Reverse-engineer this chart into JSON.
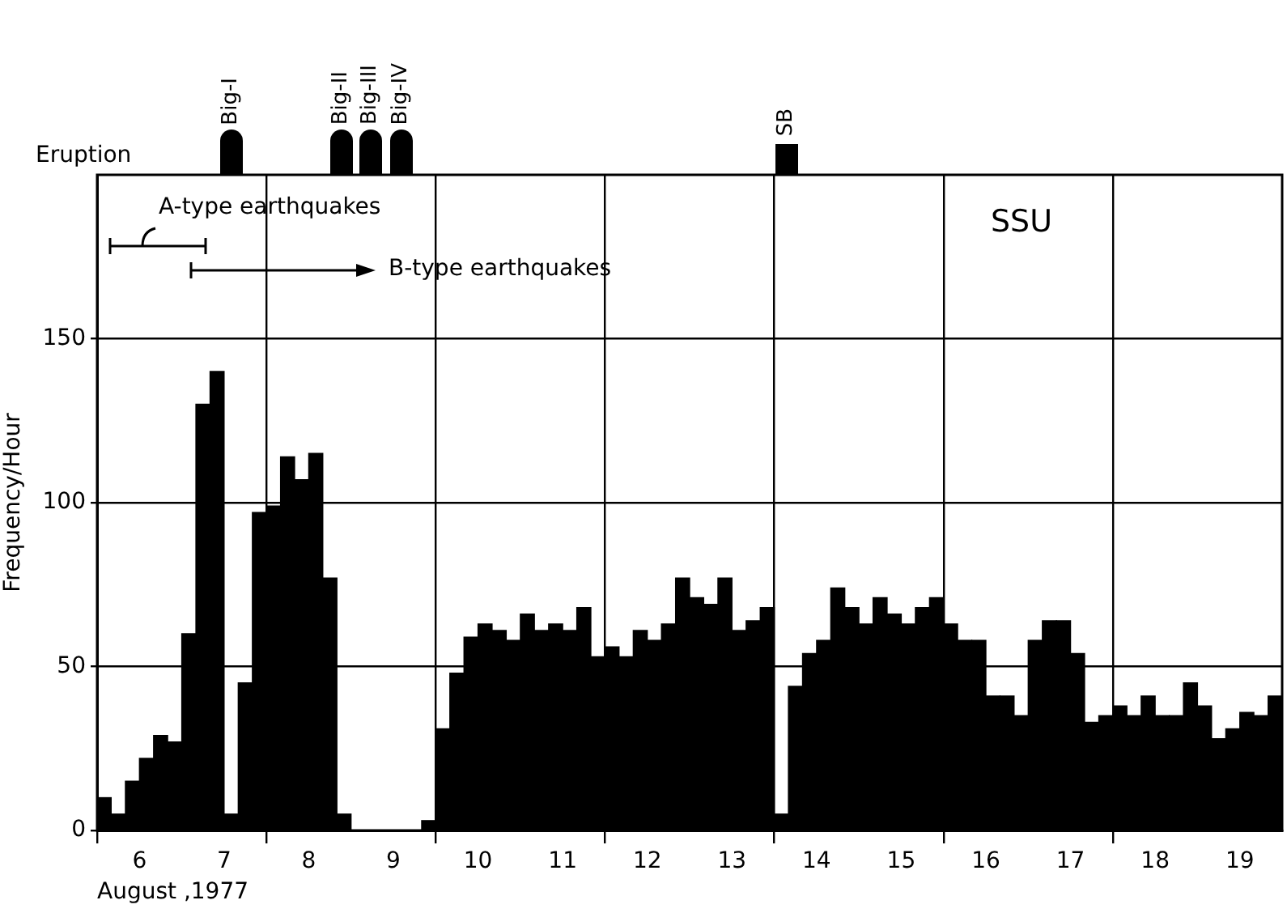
{
  "chart_data": {
    "type": "bar",
    "xlabel": "August ,1977",
    "ylabel": "Frequency/Hour",
    "x": [
      6.083,
      6.25,
      6.417,
      6.583,
      6.75,
      6.917,
      7.083,
      7.25,
      7.417,
      7.583,
      7.75,
      7.917,
      8.083,
      8.25,
      8.417,
      8.583,
      8.75,
      8.917,
      9.083,
      9.25,
      9.417,
      9.583,
      9.75,
      9.917,
      10.083,
      10.25,
      10.417,
      10.583,
      10.75,
      10.917,
      11.083,
      11.25,
      11.417,
      11.583,
      11.75,
      11.917,
      12.083,
      12.25,
      12.417,
      12.583,
      12.75,
      12.917,
      13.083,
      13.25,
      13.417,
      13.583,
      13.75,
      13.917,
      14.083,
      14.25,
      14.417,
      14.583,
      14.75,
      14.917,
      15.083,
      15.25,
      15.417,
      15.583,
      15.75,
      15.917,
      16.083,
      16.25,
      16.417,
      16.583,
      16.75,
      16.917,
      17.083,
      17.25,
      17.417,
      17.583,
      17.75,
      17.917,
      18.083,
      18.25,
      18.417,
      18.583,
      18.75,
      18.917,
      19.083,
      19.25,
      19.417,
      19.583,
      19.75,
      19.917
    ],
    "values": [
      10,
      5,
      15,
      22,
      29,
      27,
      60,
      130,
      140,
      5,
      45,
      97,
      99,
      114,
      107,
      115,
      77,
      5,
      0,
      0,
      0,
      0,
      0,
      3,
      31,
      48,
      59,
      63,
      61,
      58,
      66,
      61,
      63,
      61,
      68,
      53,
      56,
      53,
      61,
      58,
      63,
      77,
      71,
      69,
      77,
      61,
      64,
      68,
      5,
      44,
      54,
      58,
      74,
      68,
      63,
      71,
      66,
      63,
      68,
      71,
      63,
      58,
      58,
      41,
      41,
      35,
      58,
      64,
      64,
      54,
      33,
      35,
      38,
      35,
      41,
      35,
      35,
      45,
      38,
      28,
      31,
      36,
      35,
      41
    ],
    "color": "#000000",
    "xlim": [
      6,
      20
    ],
    "xticks": [
      {
        "value": 6,
        "label": null
      },
      {
        "value": 6.5,
        "label": "6"
      },
      {
        "value": 7.5,
        "label": "7"
      },
      {
        "value": 8,
        "label": null
      },
      {
        "value": 8.5,
        "label": "8"
      },
      {
        "value": 9.5,
        "label": "9"
      },
      {
        "value": 10,
        "label": null
      },
      {
        "value": 10.5,
        "label": "10"
      },
      {
        "value": 11.5,
        "label": "11"
      },
      {
        "value": 12,
        "label": null
      },
      {
        "value": 12.5,
        "label": "12"
      },
      {
        "value": 13.5,
        "label": "13"
      },
      {
        "value": 14,
        "label": null
      },
      {
        "value": 14.5,
        "label": "14"
      },
      {
        "value": 15.5,
        "label": "15"
      },
      {
        "value": 16,
        "label": null
      },
      {
        "value": 16.5,
        "label": "16"
      },
      {
        "value": 17.5,
        "label": "17"
      },
      {
        "value": 18,
        "label": null
      },
      {
        "value": 18.5,
        "label": "18"
      },
      {
        "value": 19.5,
        "label": "19"
      }
    ],
    "ylim": [
      0,
      200
    ],
    "yticks": [
      0,
      50,
      100,
      150
    ],
    "grid": true,
    "legend": false,
    "annotations": [
      "Eruption",
      "SSU",
      "A-type earthquakes",
      "B-type earthquakes",
      "Big-I",
      "Big-II",
      "Big-III",
      "Big-IV",
      "SB"
    ]
  }
}
